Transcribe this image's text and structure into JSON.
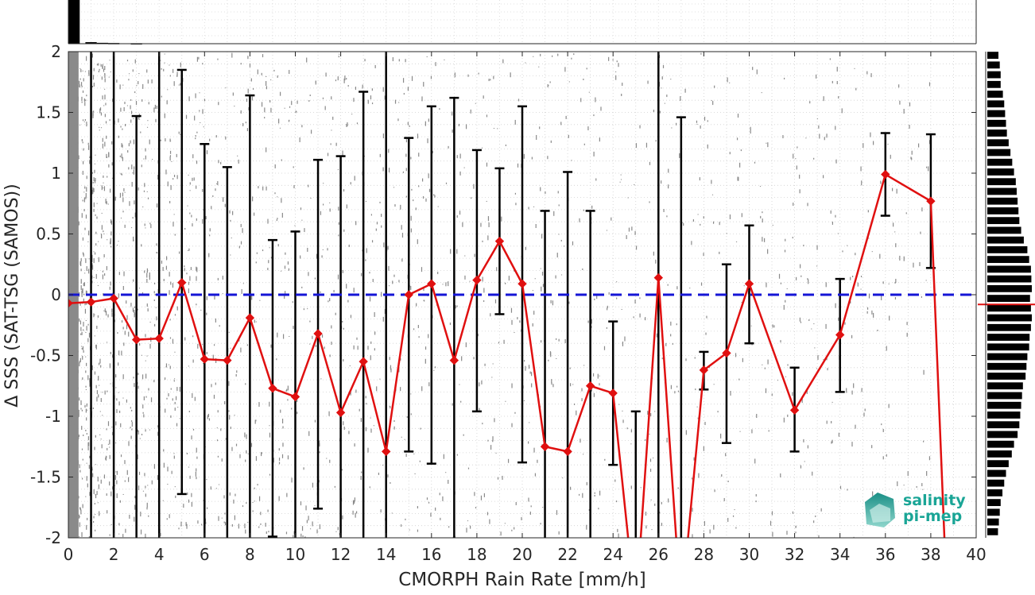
{
  "chart_data": {
    "type": "line",
    "xlabel": "CMORPH Rain Rate [mm/h]",
    "ylabel": "Δ SSS (SAT-TSG (SAMOS))",
    "xlim": [
      0,
      40
    ],
    "ylim": [
      -2,
      2
    ],
    "x_ticks": [
      "0",
      "2",
      "4",
      "6",
      "8",
      "10",
      "12",
      "14",
      "16",
      "18",
      "20",
      "22",
      "24",
      "26",
      "28",
      "30",
      "32",
      "34",
      "36",
      "38",
      "40"
    ],
    "y_ticks": [
      "2",
      "1.5",
      "1",
      "0.5",
      "0",
      "-0.5",
      "-1",
      "-1.5",
      "-2"
    ],
    "grid": true,
    "reference_line": {
      "y": 0,
      "style": "dashed",
      "color": "#1515d6"
    },
    "mean_series": {
      "color": "#e01010",
      "marker": "diamond",
      "x": [
        0,
        1,
        2,
        3,
        4,
        5,
        6,
        7,
        8,
        9,
        10,
        11,
        12,
        13,
        14,
        15,
        16,
        17,
        18,
        19,
        20,
        21,
        22,
        23,
        24,
        25,
        26,
        27,
        28,
        29,
        30,
        32,
        34,
        36,
        38,
        38.6
      ],
      "y": [
        -0.07,
        -0.06,
        -0.03,
        -0.37,
        -0.36,
        0.1,
        -0.53,
        -0.54,
        -0.19,
        -0.77,
        -0.84,
        -0.32,
        -0.97,
        -0.55,
        -1.29,
        0.0,
        0.09,
        -0.54,
        0.12,
        0.44,
        0.09,
        -1.25,
        -1.29,
        -0.75,
        -0.81,
        -2.6,
        0.14,
        -2.6,
        -0.62,
        -0.48,
        0.09,
        -0.95,
        -0.33,
        0.99,
        0.77,
        -2.0
      ]
    },
    "error_bars": {
      "color": "#000000",
      "x": [
        1,
        2,
        3,
        4,
        5,
        6,
        7,
        8,
        9,
        10,
        11,
        12,
        13,
        14,
        15,
        16,
        17,
        18,
        19,
        20,
        21,
        22,
        23,
        24,
        25,
        26,
        27,
        28,
        29,
        30,
        32,
        34,
        36,
        38
      ],
      "low": [
        -2,
        -2,
        -2,
        -2,
        -1.64,
        -2,
        -2,
        -2,
        -1.99,
        -2,
        -1.76,
        -2,
        -2,
        -2,
        -1.29,
        -1.39,
        -2,
        -0.96,
        -0.16,
        -1.38,
        -2,
        -2,
        -2,
        -1.4,
        -2,
        -2,
        -2,
        -0.78,
        -1.22,
        -0.4,
        -1.29,
        -0.8,
        0.65,
        0.22
      ],
      "high": [
        2,
        2,
        1.47,
        2,
        1.85,
        1.24,
        1.05,
        1.64,
        0.45,
        0.52,
        1.11,
        1.14,
        1.67,
        2,
        1.29,
        1.55,
        1.62,
        1.19,
        1.04,
        1.55,
        0.69,
        1.01,
        0.69,
        -0.22,
        -0.96,
        2,
        1.46,
        -0.47,
        0.25,
        0.57,
        -0.6,
        0.13,
        1.33,
        1.32
      ]
    },
    "side_histogram": {
      "bin_centers": [
        1.97,
        1.89,
        1.81,
        1.73,
        1.65,
        1.57,
        1.49,
        1.41,
        1.33,
        1.25,
        1.17,
        1.09,
        1.01,
        0.93,
        0.85,
        0.77,
        0.69,
        0.61,
        0.53,
        0.45,
        0.37,
        0.29,
        0.21,
        0.13,
        0.05,
        -0.03,
        -0.11,
        -0.19,
        -0.27,
        -0.35,
        -0.43,
        -0.51,
        -0.59,
        -0.67,
        -0.75,
        -0.83,
        -0.91,
        -0.99,
        -1.07,
        -1.15,
        -1.23,
        -1.31,
        -1.39,
        -1.47,
        -1.55,
        -1.63,
        -1.71,
        -1.79,
        -1.87,
        -1.95
      ],
      "relative_counts": [
        0.25,
        0.28,
        0.3,
        0.3,
        0.35,
        0.38,
        0.4,
        0.42,
        0.44,
        0.48,
        0.52,
        0.56,
        0.6,
        0.64,
        0.66,
        0.68,
        0.7,
        0.72,
        0.76,
        0.82,
        0.9,
        0.94,
        0.98,
        0.99,
        1.0,
        0.96,
        0.98,
        1.0,
        0.98,
        0.95,
        0.94,
        0.9,
        0.88,
        0.86,
        0.8,
        0.78,
        0.76,
        0.74,
        0.72,
        0.68,
        0.6,
        0.55,
        0.48,
        0.42,
        0.38,
        0.34,
        0.3,
        0.28,
        0.26,
        0.24
      ],
      "mean_marker_y": -0.08,
      "mean_marker_color": "#e01010"
    },
    "top_histogram": {
      "bin_centers": [
        0.25,
        1,
        1.5,
        2,
        3
      ],
      "relative_counts": [
        1.0,
        0.035,
        0.02,
        0.015,
        0.01
      ]
    },
    "scatter": {
      "color": "#8a8a8a",
      "description_only": false
    }
  },
  "logo": {
    "line1": "salinity",
    "line2": "pi-mep"
  }
}
